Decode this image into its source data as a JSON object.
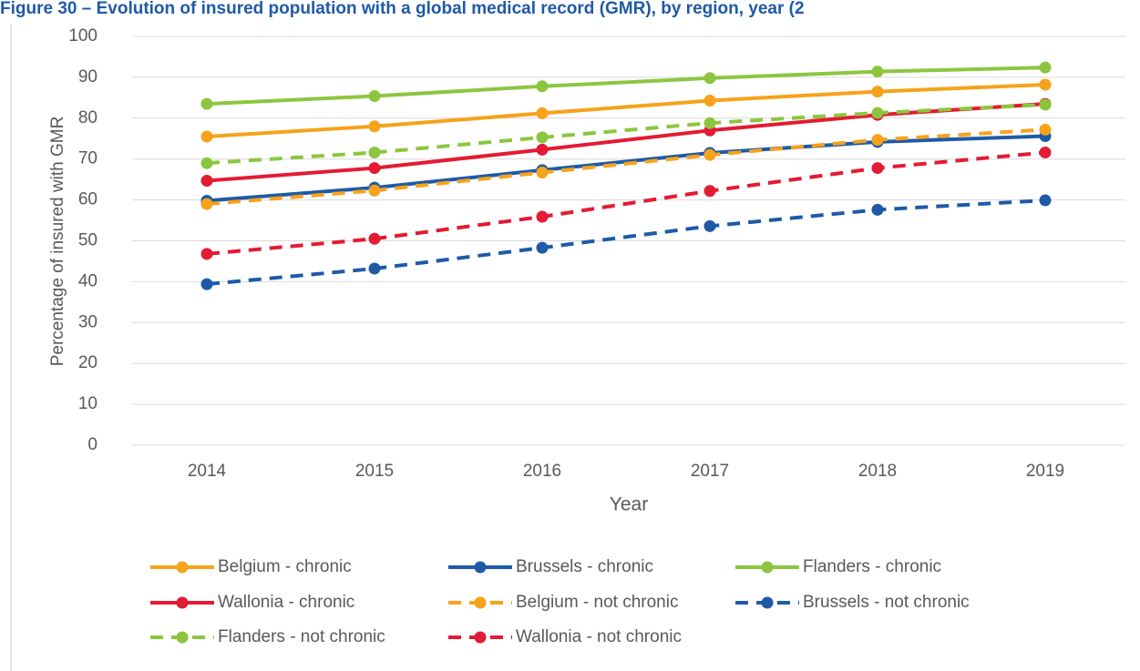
{
  "chart_data": {
    "type": "line",
    "title": "Figure 30 – Evolution of insured population with a global medical record (GMR), by region, year (2",
    "x_label": "Year",
    "y_label": "Percentage of insured with GMR",
    "categories": [
      "2014",
      "2015",
      "2016",
      "2017",
      "2018",
      "2019"
    ],
    "ylim": [
      0,
      100
    ],
    "yticks": [
      0,
      10,
      20,
      30,
      40,
      50,
      60,
      70,
      80,
      90,
      100
    ],
    "grid": true,
    "legend": "bottom",
    "series": [
      {
        "name": "Belgium - chronic",
        "color": "#f7a21b",
        "dashed": false,
        "values": [
          75.5,
          78,
          81.2,
          84.3,
          86.5,
          88.2
        ]
      },
      {
        "name": "Brussels - chronic",
        "color": "#1e5aa8",
        "dashed": false,
        "values": [
          59.8,
          63,
          67.3,
          71.5,
          74.2,
          75.6
        ]
      },
      {
        "name": "Flanders - chronic",
        "color": "#8cc63f",
        "dashed": false,
        "values": [
          83.5,
          85.4,
          87.8,
          89.8,
          91.4,
          92.4
        ]
      },
      {
        "name": "Wallonia - chronic",
        "color": "#e31b33",
        "dashed": false,
        "values": [
          64.7,
          67.8,
          72.3,
          77,
          80.8,
          83.5
        ]
      },
      {
        "name": "Belgium - not chronic",
        "color": "#f7a21b",
        "dashed": true,
        "values": [
          59,
          62.3,
          66.7,
          71,
          74.7,
          77.2
        ]
      },
      {
        "name": "Brussels - not chronic",
        "color": "#1e5aa8",
        "dashed": true,
        "values": [
          39.4,
          43.2,
          48.3,
          53.6,
          57.6,
          59.9
        ]
      },
      {
        "name": "Flanders - not chronic",
        "color": "#8cc63f",
        "dashed": true,
        "values": [
          69,
          71.6,
          75.3,
          78.8,
          81.3,
          83.3
        ]
      },
      {
        "name": "Wallonia - not chronic",
        "color": "#e31b33",
        "dashed": true,
        "values": [
          46.8,
          50.5,
          55.9,
          62.2,
          67.8,
          71.6
        ]
      }
    ]
  }
}
